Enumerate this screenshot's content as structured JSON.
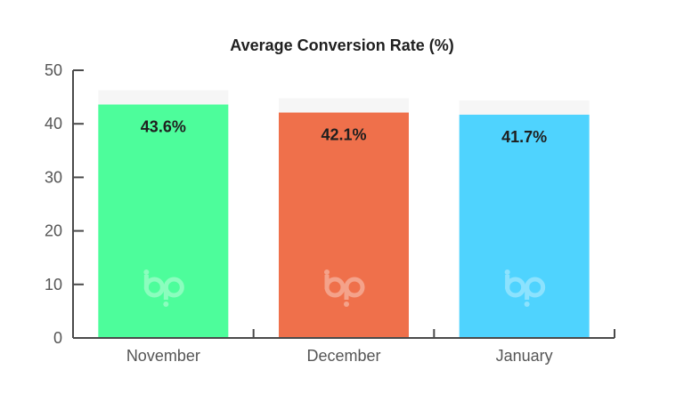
{
  "chart_data": {
    "type": "bar",
    "title": "Average Conversion Rate (%)",
    "categories": [
      "November",
      "December",
      "January"
    ],
    "values": [
      43.6,
      42.1,
      41.7
    ],
    "value_labels": [
      "43.6%",
      "42.1%",
      "41.7%"
    ],
    "colors": [
      "#4dfd9b",
      "#ef704b",
      "#4fd3fe"
    ],
    "ylim": [
      0,
      50
    ],
    "yticks": [
      0,
      10,
      20,
      30,
      40,
      50
    ],
    "xlabel": "",
    "ylabel": "",
    "grid": false,
    "legend": "none"
  }
}
